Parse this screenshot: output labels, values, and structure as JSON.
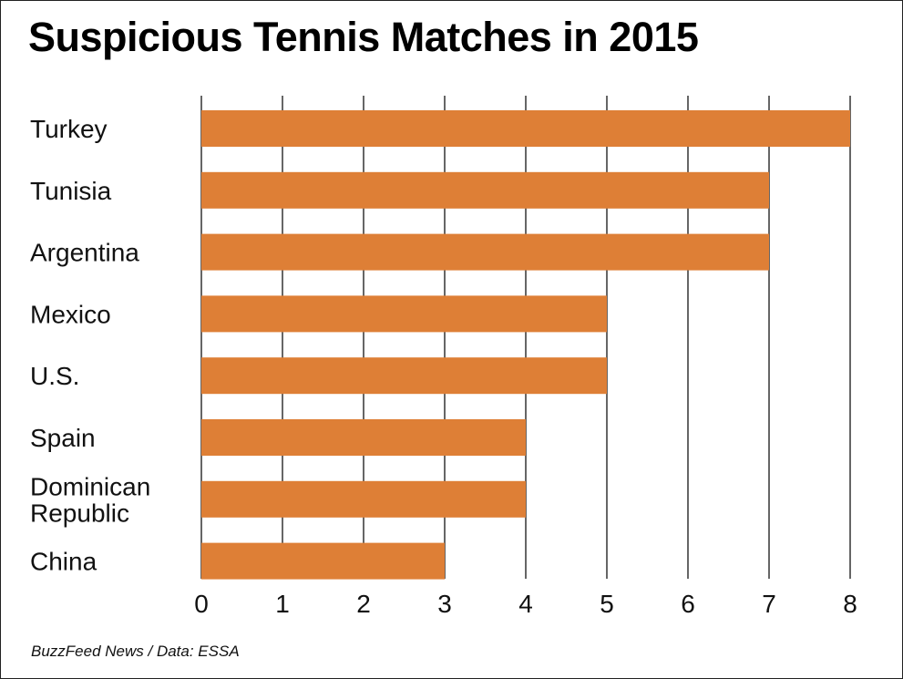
{
  "chart_data": {
    "type": "bar",
    "orientation": "horizontal",
    "title": "Suspicious Tennis Matches in 2015",
    "categories": [
      "Turkey",
      "Tunisia",
      "Argentina",
      "Mexico",
      "U.S.",
      "Spain",
      "Dominican Republic",
      "China"
    ],
    "category_display": [
      [
        "Turkey"
      ],
      [
        "Tunisia"
      ],
      [
        "Argentina"
      ],
      [
        "Mexico"
      ],
      [
        "U.S."
      ],
      [
        "Spain"
      ],
      [
        "Dominican",
        "Republic"
      ],
      [
        "China"
      ]
    ],
    "values": [
      8,
      7,
      7,
      5,
      5,
      4,
      4,
      3
    ],
    "xlim": [
      0,
      8
    ],
    "xticks": [
      "0",
      "1",
      "2",
      "3",
      "4",
      "5",
      "6",
      "7",
      "8"
    ],
    "xlabel": "",
    "ylabel": "",
    "grid": "vertical",
    "bar_color": "#DE7F36",
    "grid_color": "#000000"
  },
  "source": "BuzzFeed News / Data: ESSA"
}
